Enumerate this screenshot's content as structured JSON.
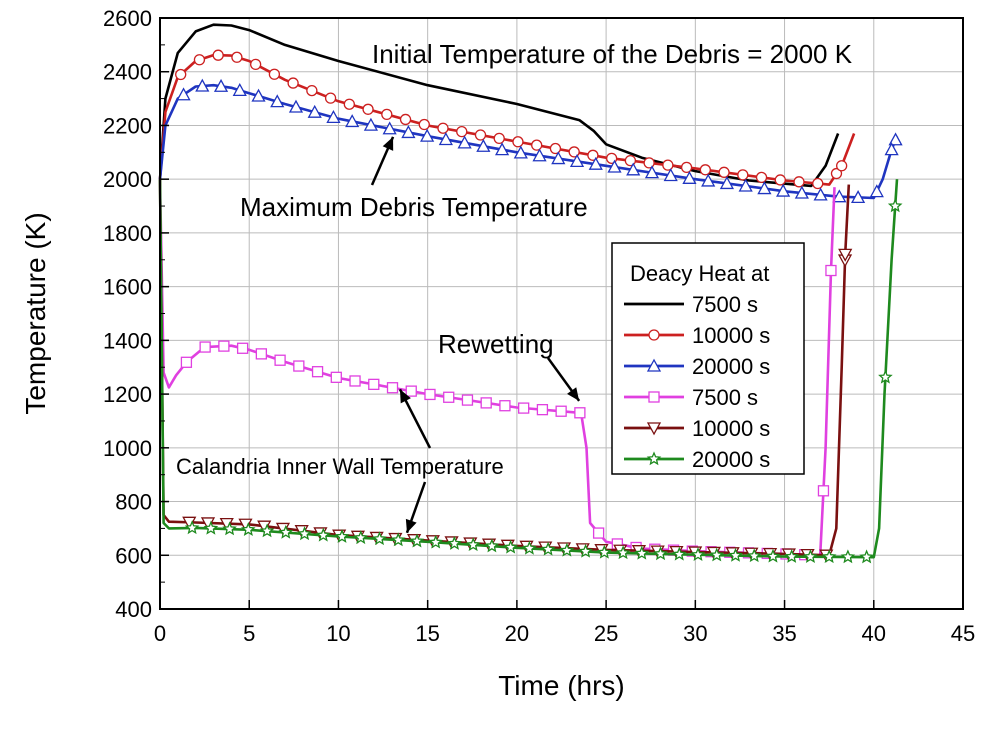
{
  "chart_data": {
    "type": "line",
    "xlabel": "Time (hrs)",
    "ylabel": "Temperature (K)",
    "xlim": [
      0,
      45
    ],
    "ylim": [
      400,
      2600
    ],
    "xticks": [
      0,
      5,
      10,
      15,
      20,
      25,
      30,
      35,
      40,
      45
    ],
    "yticks": [
      400,
      600,
      800,
      1000,
      1200,
      1400,
      1600,
      1800,
      2000,
      2200,
      2400,
      2600
    ],
    "grid": true,
    "legend": {
      "title": "Deacy Heat at",
      "placement": "center-right",
      "entries": [
        "7500 s",
        "10000 s",
        "20000 s",
        "7500 s",
        "10000 s",
        "20000 s"
      ]
    },
    "annotations": [
      {
        "id": "initial-temp",
        "text": "Initial Temperature of the Debris = 2000 K"
      },
      {
        "id": "max-debris",
        "text": "Maximum Debris Temperature",
        "arrow_to": [
          12.5,
          2180
        ]
      },
      {
        "id": "rewetting",
        "text": "Rewetting",
        "arrow_to": [
          23.6,
          1130
        ]
      },
      {
        "id": "calandria",
        "text": "Calandria Inner Wall Temperature",
        "arrow_to_1": [
          13.0,
          1240
        ],
        "arrow_to_2": [
          13.0,
          665
        ]
      }
    ],
    "series": [
      {
        "name": "7500 s",
        "color": "#000000",
        "marker": "none",
        "points": [
          [
            0,
            2000
          ],
          [
            0.3,
            2300
          ],
          [
            1,
            2470
          ],
          [
            2,
            2550
          ],
          [
            3,
            2575
          ],
          [
            4,
            2572
          ],
          [
            5,
            2555
          ],
          [
            7,
            2500
          ],
          [
            10,
            2440
          ],
          [
            15,
            2350
          ],
          [
            20,
            2280
          ],
          [
            23.5,
            2220
          ],
          [
            24.3,
            2180
          ],
          [
            25,
            2130
          ],
          [
            27,
            2080
          ],
          [
            30,
            2030
          ],
          [
            33,
            1995
          ],
          [
            36.5,
            1975
          ],
          [
            37.3,
            2050
          ],
          [
            38,
            2170
          ]
        ]
      },
      {
        "name": "10000 s",
        "color": "#cc2020",
        "marker": "circle",
        "points": [
          [
            0,
            2000
          ],
          [
            0.3,
            2250
          ],
          [
            1,
            2380
          ],
          [
            2,
            2440
          ],
          [
            3,
            2462
          ],
          [
            4,
            2460
          ],
          [
            5,
            2440
          ],
          [
            7,
            2370
          ],
          [
            10,
            2290
          ],
          [
            15,
            2200
          ],
          [
            20,
            2140
          ],
          [
            25,
            2080
          ],
          [
            30,
            2040
          ],
          [
            35,
            1995
          ],
          [
            37.5,
            1980
          ],
          [
            38.2,
            2050
          ],
          [
            38.9,
            2170
          ]
        ]
      },
      {
        "name": "20000 s",
        "color": "#1f35c0",
        "marker": "triangle-up",
        "points": [
          [
            0,
            2000
          ],
          [
            0.3,
            2200
          ],
          [
            1,
            2300
          ],
          [
            2,
            2345
          ],
          [
            3,
            2350
          ],
          [
            4,
            2340
          ],
          [
            5,
            2320
          ],
          [
            7,
            2280
          ],
          [
            10,
            2225
          ],
          [
            15,
            2160
          ],
          [
            20,
            2100
          ],
          [
            25,
            2050
          ],
          [
            30,
            2000
          ],
          [
            35,
            1955
          ],
          [
            38,
            1935
          ],
          [
            40,
            1930
          ],
          [
            40.5,
            2000
          ],
          [
            41,
            2110
          ],
          [
            41.3,
            2160
          ]
        ]
      },
      {
        "name": "7500 s",
        "color": "#e040e0",
        "marker": "square",
        "points": [
          [
            0,
            2000
          ],
          [
            0.2,
            1280
          ],
          [
            0.5,
            1225
          ],
          [
            0.9,
            1270
          ],
          [
            1.5,
            1320
          ],
          [
            2.5,
            1375
          ],
          [
            4,
            1380
          ],
          [
            5,
            1365
          ],
          [
            7,
            1320
          ],
          [
            10,
            1260
          ],
          [
            15,
            1200
          ],
          [
            20,
            1150
          ],
          [
            23.6,
            1130
          ],
          [
            23.9,
            1000
          ],
          [
            24.1,
            720
          ],
          [
            25,
            650
          ],
          [
            27,
            625
          ],
          [
            30,
            615
          ],
          [
            35,
            605
          ],
          [
            37,
            600
          ],
          [
            37.3,
            1000
          ],
          [
            37.6,
            1660
          ],
          [
            37.8,
            1970
          ]
        ]
      },
      {
        "name": "10000 s",
        "color": "#7a1010",
        "marker": "triangle-down",
        "points": [
          [
            0,
            2000
          ],
          [
            0.2,
            750
          ],
          [
            0.5,
            725
          ],
          [
            2,
            722
          ],
          [
            5,
            715
          ],
          [
            10,
            675
          ],
          [
            15,
            655
          ],
          [
            20,
            635
          ],
          [
            25,
            620
          ],
          [
            30,
            612
          ],
          [
            35,
            605
          ],
          [
            37.5,
            600
          ],
          [
            37.9,
            700
          ],
          [
            38.2,
            1300
          ],
          [
            38.4,
            1720
          ],
          [
            38.6,
            1980
          ]
        ]
      },
      {
        "name": "20000 s",
        "color": "#1e8a1e",
        "marker": "star",
        "points": [
          [
            0,
            2000
          ],
          [
            0.2,
            720
          ],
          [
            0.5,
            700
          ],
          [
            2,
            702
          ],
          [
            5,
            695
          ],
          [
            10,
            670
          ],
          [
            15,
            650
          ],
          [
            20,
            628
          ],
          [
            25,
            610
          ],
          [
            30,
            602
          ],
          [
            35,
            595
          ],
          [
            40,
            593
          ],
          [
            40.3,
            700
          ],
          [
            40.6,
            1200
          ],
          [
            41,
            1700
          ],
          [
            41.2,
            1900
          ],
          [
            41.3,
            2000
          ]
        ]
      }
    ]
  }
}
